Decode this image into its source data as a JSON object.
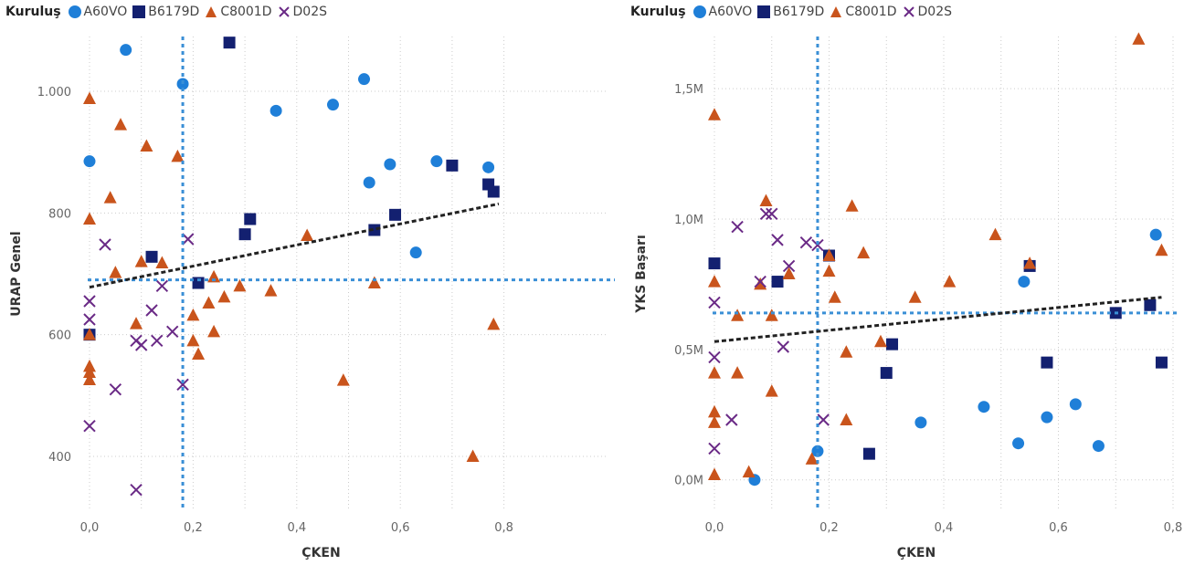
{
  "colors": {
    "A60VO": "#1f7fd8",
    "B6179D": "#132070",
    "C8001D": "#c9541c",
    "D02S": "#6a2a86",
    "reference": "#3a8fd6",
    "trend": "#222222",
    "grid": "#cccccc"
  },
  "legend": {
    "title": "Kuruluş",
    "items": [
      {
        "name": "A60VO",
        "marker": "circle"
      },
      {
        "name": "B6179D",
        "marker": "square"
      },
      {
        "name": "C8001D",
        "marker": "triangle"
      },
      {
        "name": "D02S",
        "marker": "x"
      }
    ]
  },
  "chart_data": [
    {
      "type": "scatter",
      "xlabel": "ÇKEN",
      "ylabel": "URAP Genel",
      "xlim": [
        0,
        1
      ],
      "ylim": [
        310,
        1090
      ],
      "xticks": [
        {
          "v": 0,
          "label": "0,0"
        },
        {
          "v": 0.2,
          "label": "0,2"
        },
        {
          "v": 0.4,
          "label": "0,4"
        },
        {
          "v": 0.6,
          "label": "0,6"
        },
        {
          "v": 0.8,
          "label": "0,8"
        }
      ],
      "yticks": [
        {
          "v": 400,
          "label": "400"
        },
        {
          "v": 600,
          "label": "600"
        },
        {
          "v": 800,
          "label": "800"
        },
        {
          "v": 1000,
          "label": "1.000"
        }
      ],
      "xgrid": [
        0,
        0.1,
        0.2,
        0.3,
        0.4,
        0.5,
        0.6,
        0.7,
        0.8
      ],
      "ref_x": 0.18,
      "ref_y": 690,
      "trend": {
        "x0": 0,
        "y0": 678,
        "x1": 0.79,
        "y1": 815
      },
      "series": [
        {
          "name": "A60VO",
          "marker": "circle",
          "points": [
            [
              0.0,
              885
            ],
            [
              0.07,
              1068
            ],
            [
              0.18,
              1012
            ],
            [
              0.36,
              968
            ],
            [
              0.47,
              978
            ],
            [
              0.53,
              1020
            ],
            [
              0.54,
              850
            ],
            [
              0.58,
              880
            ],
            [
              0.63,
              735
            ],
            [
              0.67,
              885
            ],
            [
              0.77,
              875
            ]
          ]
        },
        {
          "name": "B6179D",
          "marker": "square",
          "points": [
            [
              0.0,
              600
            ],
            [
              0.12,
              728
            ],
            [
              0.21,
              685
            ],
            [
              0.27,
              1080
            ],
            [
              0.3,
              765
            ],
            [
              0.31,
              790
            ],
            [
              0.55,
              772
            ],
            [
              0.59,
              797
            ],
            [
              0.7,
              878
            ],
            [
              0.77,
              847
            ],
            [
              0.78,
              835
            ]
          ]
        },
        {
          "name": "C8001D",
          "marker": "triangle",
          "points": [
            [
              0.0,
              988
            ],
            [
              0.0,
              790
            ],
            [
              0.0,
              600
            ],
            [
              0.0,
              548
            ],
            [
              0.0,
              538
            ],
            [
              0.0,
              526
            ],
            [
              0.04,
              825
            ],
            [
              0.05,
              702
            ],
            [
              0.06,
              945
            ],
            [
              0.09,
              618
            ],
            [
              0.1,
              720
            ],
            [
              0.11,
              910
            ],
            [
              0.14,
              718
            ],
            [
              0.17,
              893
            ],
            [
              0.2,
              632
            ],
            [
              0.2,
              590
            ],
            [
              0.21,
              568
            ],
            [
              0.23,
              652
            ],
            [
              0.24,
              695
            ],
            [
              0.24,
              605
            ],
            [
              0.26,
              662
            ],
            [
              0.29,
              680
            ],
            [
              0.35,
              672
            ],
            [
              0.42,
              763
            ],
            [
              0.49,
              525
            ],
            [
              0.55,
              685
            ],
            [
              0.74,
              400
            ],
            [
              0.78,
              617
            ]
          ]
        },
        {
          "name": "D02S",
          "marker": "x",
          "points": [
            [
              0.0,
              655
            ],
            [
              0.0,
              625
            ],
            [
              0.0,
              450
            ],
            [
              0.03,
              748
            ],
            [
              0.05,
              510
            ],
            [
              0.09,
              590
            ],
            [
              0.09,
              345
            ],
            [
              0.1,
              583
            ],
            [
              0.12,
              640
            ],
            [
              0.13,
              590
            ],
            [
              0.14,
              680
            ],
            [
              0.16,
              605
            ],
            [
              0.18,
              518
            ],
            [
              0.19,
              757
            ]
          ]
        }
      ]
    },
    {
      "type": "scatter",
      "xlabel": "ÇKEN",
      "ylabel": "YKS Başarı",
      "xlim": [
        0,
        0.8
      ],
      "ylim": [
        -120000,
        1700000
      ],
      "xticks": [
        {
          "v": 0,
          "label": "0,0"
        },
        {
          "v": 0.2,
          "label": "0,2"
        },
        {
          "v": 0.4,
          "label": "0,4"
        },
        {
          "v": 0.6,
          "label": "0,6"
        },
        {
          "v": 0.8,
          "label": "0,8"
        }
      ],
      "yticks": [
        {
          "v": 0,
          "label": "0,0M"
        },
        {
          "v": 500000,
          "label": "0,5M"
        },
        {
          "v": 1000000,
          "label": "1,0M"
        },
        {
          "v": 1500000,
          "label": "1,5M"
        }
      ],
      "xgrid": [
        0,
        0.1,
        0.2,
        0.3,
        0.4,
        0.5,
        0.6,
        0.7,
        0.8
      ],
      "ref_x": 0.18,
      "ref_y": 640000,
      "trend": {
        "x0": 0,
        "y0": 530000,
        "x1": 0.78,
        "y1": 700000
      },
      "series": [
        {
          "name": "A60VO",
          "marker": "circle",
          "points": [
            [
              0.07,
              0
            ],
            [
              0.18,
              110000
            ],
            [
              0.36,
              220000
            ],
            [
              0.47,
              280000
            ],
            [
              0.53,
              140000
            ],
            [
              0.54,
              760000
            ],
            [
              0.58,
              240000
            ],
            [
              0.63,
              290000
            ],
            [
              0.67,
              130000
            ],
            [
              0.77,
              940000
            ]
          ]
        },
        {
          "name": "B6179D",
          "marker": "square",
          "points": [
            [
              0.0,
              830000
            ],
            [
              0.11,
              760000
            ],
            [
              0.2,
              860000
            ],
            [
              0.27,
              100000
            ],
            [
              0.3,
              410000
            ],
            [
              0.31,
              520000
            ],
            [
              0.55,
              820000
            ],
            [
              0.58,
              450000
            ],
            [
              0.7,
              640000
            ],
            [
              0.76,
              670000
            ],
            [
              0.78,
              450000
            ]
          ]
        },
        {
          "name": "C8001D",
          "marker": "triangle",
          "points": [
            [
              0.0,
              1400000
            ],
            [
              0.0,
              760000
            ],
            [
              0.0,
              410000
            ],
            [
              0.0,
              260000
            ],
            [
              0.0,
              220000
            ],
            [
              0.0,
              20000
            ],
            [
              0.04,
              630000
            ],
            [
              0.04,
              410000
            ],
            [
              0.06,
              30000
            ],
            [
              0.08,
              750000
            ],
            [
              0.09,
              1070000
            ],
            [
              0.1,
              630000
            ],
            [
              0.1,
              340000
            ],
            [
              0.13,
              790000
            ],
            [
              0.17,
              80000
            ],
            [
              0.2,
              860000
            ],
            [
              0.2,
              800000
            ],
            [
              0.21,
              700000
            ],
            [
              0.23,
              490000
            ],
            [
              0.23,
              230000
            ],
            [
              0.24,
              1050000
            ],
            [
              0.26,
              870000
            ],
            [
              0.29,
              530000
            ],
            [
              0.35,
              700000
            ],
            [
              0.41,
              760000
            ],
            [
              0.49,
              940000
            ],
            [
              0.55,
              830000
            ],
            [
              0.74,
              1690000
            ],
            [
              0.78,
              880000
            ]
          ]
        },
        {
          "name": "D02S",
          "marker": "x",
          "points": [
            [
              0.0,
              680000
            ],
            [
              0.0,
              470000
            ],
            [
              0.0,
              120000
            ],
            [
              0.03,
              230000
            ],
            [
              0.04,
              970000
            ],
            [
              0.08,
              760000
            ],
            [
              0.09,
              1020000
            ],
            [
              0.1,
              1020000
            ],
            [
              0.11,
              920000
            ],
            [
              0.12,
              510000
            ],
            [
              0.13,
              820000
            ],
            [
              0.16,
              910000
            ],
            [
              0.18,
              900000
            ],
            [
              0.19,
              230000
            ]
          ]
        }
      ]
    }
  ]
}
